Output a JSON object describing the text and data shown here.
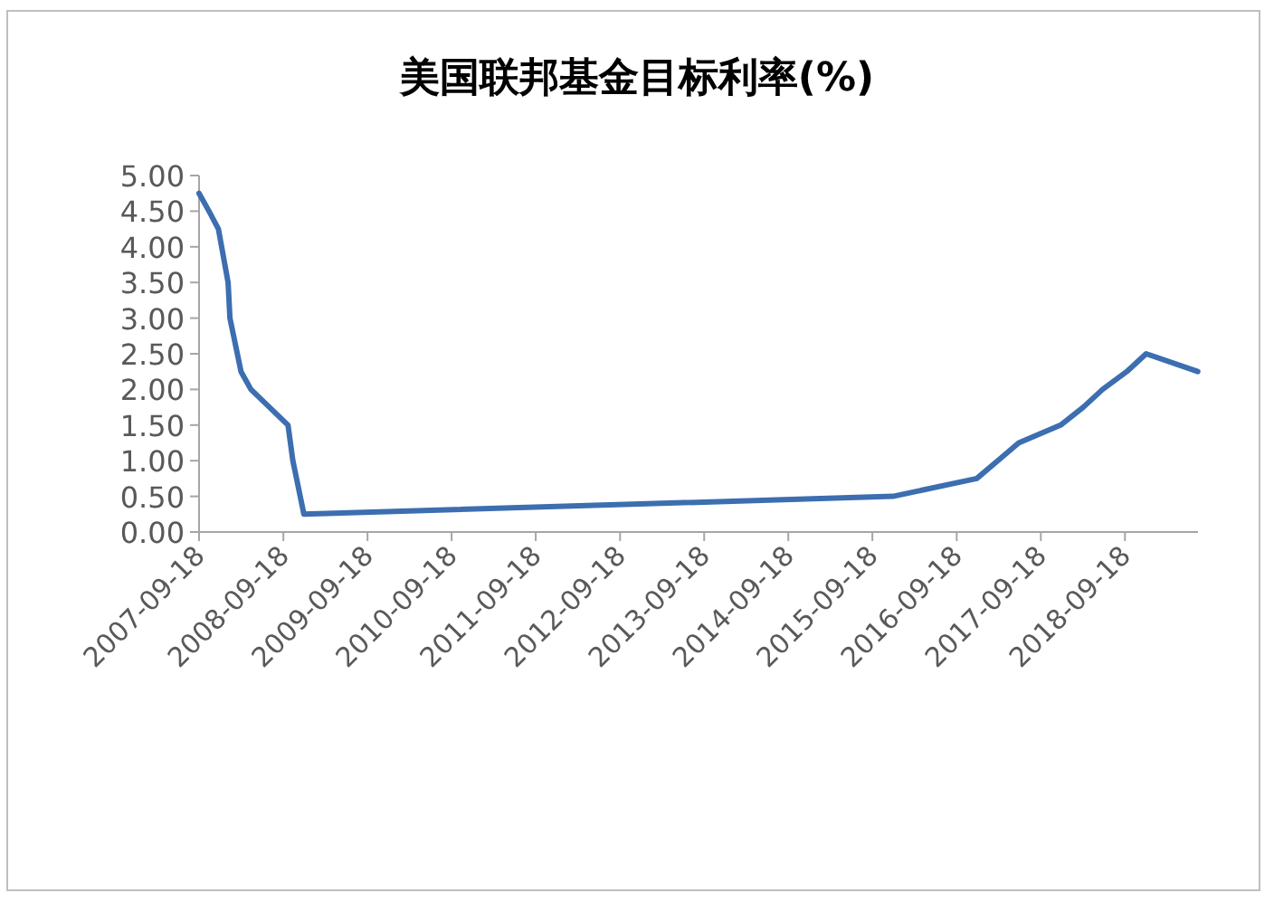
{
  "chart_data": {
    "type": "line",
    "title": "美国联邦基金目标利率(%)",
    "x": [
      "2007-09-18",
      "2007-10-31",
      "2007-12-11",
      "2008-01-22",
      "2008-01-30",
      "2008-03-18",
      "2008-04-30",
      "2008-10-08",
      "2008-10-29",
      "2008-12-16",
      "2015-12-16",
      "2016-12-14",
      "2017-03-15",
      "2017-06-14",
      "2017-12-13",
      "2018-03-21",
      "2018-06-13",
      "2018-09-26",
      "2018-12-19",
      "2019-07-31"
    ],
    "series": [
      {
        "color": "#3c6eb0",
        "values": [
          4.75,
          4.5,
          4.25,
          3.5,
          3.0,
          2.25,
          2.0,
          1.5,
          1.0,
          0.25,
          0.5,
          0.75,
          1.0,
          1.25,
          1.5,
          1.75,
          2.0,
          2.25,
          2.5,
          2.25
        ]
      }
    ],
    "xlim": [
      "2007-09-18",
      "2019-08-01"
    ],
    "xticks": [
      "2007-09-18",
      "2008-09-18",
      "2009-09-18",
      "2010-09-18",
      "2011-09-18",
      "2012-09-18",
      "2013-09-18",
      "2014-09-18",
      "2015-09-18",
      "2016-09-18",
      "2017-09-18",
      "2018-09-18"
    ],
    "ylim": [
      0,
      5
    ],
    "yticks": [
      {
        "value": 0,
        "label": "0.00"
      },
      {
        "value": 0.5,
        "label": "0.50"
      },
      {
        "value": 1,
        "label": "1.00"
      },
      {
        "value": 1.5,
        "label": "1.50"
      },
      {
        "value": 2,
        "label": "2.00"
      },
      {
        "value": 2.5,
        "label": "2.50"
      },
      {
        "value": 3,
        "label": "3.00"
      },
      {
        "value": 3.5,
        "label": "3.50"
      },
      {
        "value": 4,
        "label": "4.00"
      },
      {
        "value": 4.5,
        "label": "4.50"
      },
      {
        "value": 5,
        "label": "5.00"
      }
    ],
    "grid": false
  }
}
